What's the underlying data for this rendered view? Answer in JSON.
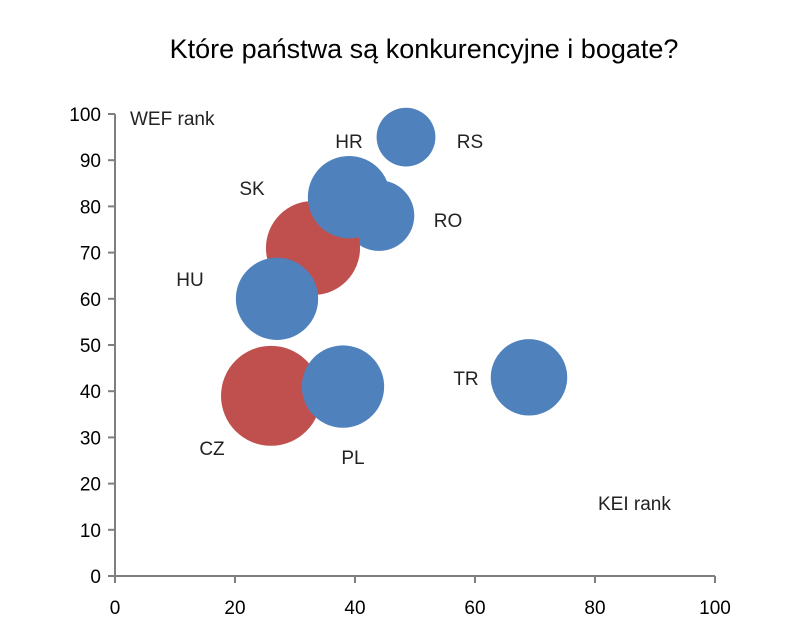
{
  "chart_data": {
    "type": "bubble",
    "title": "Które państwa są konkurencyjne i bogate?",
    "xlabel": "KEI rank",
    "ylabel": "WEF rank",
    "xlim": [
      0,
      100
    ],
    "ylim": [
      0,
      100
    ],
    "xticks": [
      0,
      20,
      40,
      60,
      80,
      100
    ],
    "yticks": [
      0,
      10,
      20,
      30,
      40,
      50,
      60,
      70,
      80,
      90,
      100
    ],
    "grid": false,
    "colors": {
      "red": "#c0504d",
      "blue": "#4f81bd"
    },
    "points": [
      {
        "label": "RS",
        "x": 48.5,
        "y": 95,
        "size": 10,
        "color": "#4f81bd"
      },
      {
        "label": "RO",
        "x": 44,
        "y": 78,
        "size": 12,
        "color": "#4f81bd"
      },
      {
        "label": "SK",
        "x": 33,
        "y": 71,
        "size": 16,
        "color": "#c0504d"
      },
      {
        "label": "HR",
        "x": 39,
        "y": 82,
        "size": 14,
        "color": "#4f81bd"
      },
      {
        "label": "HU",
        "x": 27,
        "y": 60,
        "size": 14,
        "color": "#4f81bd"
      },
      {
        "label": "CZ",
        "x": 26,
        "y": 39,
        "size": 17,
        "color": "#c0504d"
      },
      {
        "label": "PL",
        "x": 38,
        "y": 41,
        "size": 14,
        "color": "#4f81bd"
      },
      {
        "label": "TR",
        "x": 69,
        "y": 43,
        "size": 13,
        "color": "#4f81bd"
      }
    ]
  }
}
